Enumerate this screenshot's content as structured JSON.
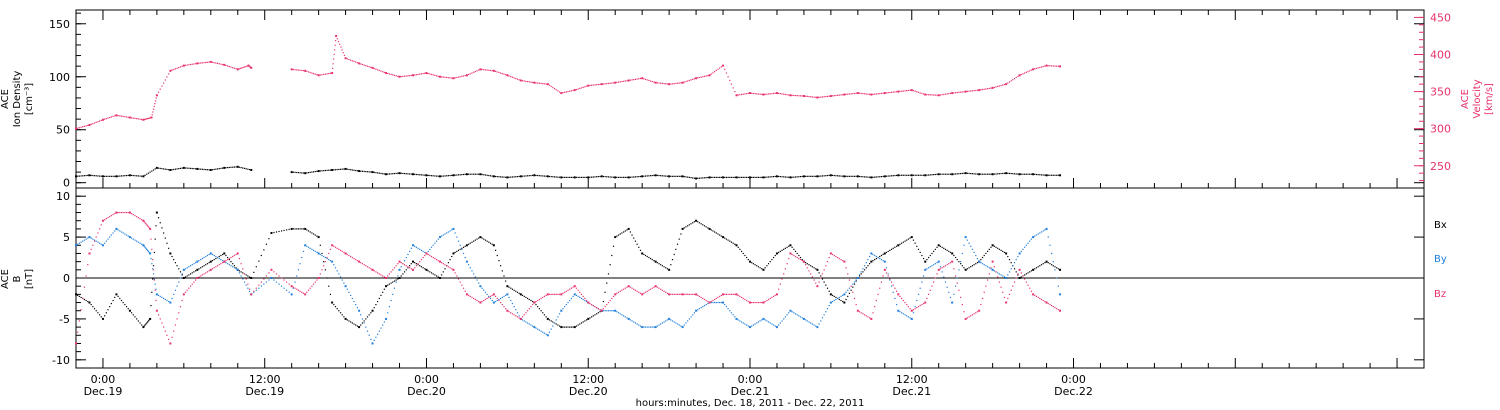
{
  "colors": {
    "density": "#000000",
    "velocity": "#e8336a",
    "bx": "#000000",
    "by": "#1f7fdb",
    "bz": "#e8336a",
    "axis": "#000000"
  },
  "chart_data": [
    {
      "type": "scatter",
      "panel": "plasma",
      "xlabel": "hours:minutes, Dec. 18, 2011 - Dec. 22, 2011",
      "x_range_hours": [
        -2,
        98
      ],
      "x_ticks": [
        {
          "hour": 0,
          "time": "0:00",
          "day": "Dec.19"
        },
        {
          "hour": 12,
          "time": "12:00",
          "day": "Dec.19"
        },
        {
          "hour": 24,
          "time": "0:00",
          "day": "Dec.20"
        },
        {
          "hour": 36,
          "time": "12:00",
          "day": "Dec.20"
        },
        {
          "hour": 48,
          "time": "0:00",
          "day": "Dec.21"
        },
        {
          "hour": 60,
          "time": "12:00",
          "day": "Dec.21"
        },
        {
          "hour": 72,
          "time": "0:00",
          "day": "Dec.22"
        }
      ],
      "left_axis": {
        "label_lines": [
          "ACE",
          "Ion Density",
          "[cm⁻³]"
        ],
        "ylim": [
          -5,
          163
        ],
        "ticks": [
          0,
          50,
          100,
          150
        ]
      },
      "right_axis": {
        "label_lines": [
          "ACE",
          "Velocity",
          "[km/s]"
        ],
        "ylim": [
          220,
          460
        ],
        "ticks": [
          250,
          300,
          350,
          400,
          450
        ]
      },
      "series": [
        {
          "key": "density",
          "axis": "left",
          "x": [
            -2,
            -1,
            0,
            1,
            2,
            3,
            4,
            5,
            6,
            7,
            8,
            9,
            10,
            11,
            14,
            15,
            16,
            17,
            18,
            19,
            20,
            21,
            22,
            23,
            24,
            25,
            26,
            27,
            28,
            29,
            30,
            31,
            32,
            33,
            34,
            35,
            36,
            37,
            38,
            39,
            40,
            41,
            42,
            43,
            44,
            45,
            46,
            47,
            48,
            49,
            50,
            51,
            52,
            53,
            54,
            55,
            56,
            57,
            58,
            59,
            60,
            61,
            62,
            63,
            64,
            65,
            66,
            67,
            68,
            69,
            70,
            71
          ],
          "y": [
            6,
            7,
            6,
            6,
            7,
            6,
            14,
            12,
            14,
            13,
            12,
            14,
            15,
            12,
            10,
            9,
            11,
            12,
            13,
            11,
            10,
            8,
            9,
            8,
            7,
            6,
            7,
            8,
            8,
            6,
            5,
            6,
            7,
            6,
            5,
            5,
            5,
            6,
            5,
            5,
            6,
            7,
            6,
            6,
            4,
            5,
            5,
            5,
            5,
            5,
            6,
            5,
            6,
            6,
            7,
            6,
            6,
            5,
            6,
            7,
            7,
            7,
            8,
            8,
            9,
            8,
            8,
            9,
            8,
            8,
            7,
            7
          ]
        },
        {
          "key": "velocity",
          "axis": "right",
          "x": [
            -2,
            -1,
            0,
            1,
            2,
            3,
            3.6,
            4,
            5,
            6,
            7,
            8,
            9,
            10,
            10.8,
            11,
            14,
            15,
            16,
            17,
            17.3,
            18,
            19,
            20,
            21,
            22,
            23,
            24,
            25,
            26,
            27,
            28,
            29,
            30,
            31,
            32,
            33,
            34,
            35,
            36,
            37,
            38,
            39,
            40,
            41,
            42,
            43,
            44,
            45,
            46,
            47,
            48,
            49,
            50,
            51,
            52,
            53,
            54,
            55,
            56,
            57,
            58,
            59,
            60,
            61,
            62,
            63,
            64,
            65,
            66,
            67,
            68,
            69,
            70,
            71
          ],
          "y": [
            300,
            305,
            312,
            318,
            315,
            312,
            315,
            345,
            378,
            385,
            388,
            390,
            386,
            380,
            385,
            382,
            380,
            378,
            372,
            375,
            425,
            395,
            388,
            382,
            375,
            370,
            372,
            375,
            370,
            368,
            372,
            380,
            378,
            372,
            365,
            362,
            360,
            348,
            352,
            358,
            360,
            362,
            365,
            368,
            362,
            360,
            362,
            368,
            372,
            385,
            345,
            348,
            346,
            348,
            345,
            344,
            342,
            344,
            346,
            348,
            346,
            348,
            350,
            352,
            346,
            345,
            348,
            350,
            352,
            355,
            360,
            372,
            380,
            385,
            384
          ]
        }
      ]
    },
    {
      "type": "scatter",
      "panel": "magnetic",
      "xlabel": "hours:minutes, Dec. 18, 2011 - Dec. 22, 2011",
      "x_range_hours": [
        -2,
        98
      ],
      "left_axis": {
        "label_lines": [
          "ACE",
          "B",
          "[nT]"
        ],
        "ylim": [
          -11,
          11
        ],
        "ticks": [
          -10,
          -5,
          0,
          5,
          10
        ]
      },
      "legend": {
        "placement": "right",
        "entries": [
          {
            "key": "bx",
            "label": "Bx"
          },
          {
            "key": "by",
            "label": "By"
          },
          {
            "key": "bz",
            "label": "Bz"
          }
        ]
      },
      "series": [
        {
          "key": "bx",
          "x": [
            -2,
            -1,
            0,
            1,
            2,
            3,
            3.5,
            4,
            5,
            6,
            7,
            8,
            9,
            10,
            11,
            12.5,
            14,
            15,
            16,
            17,
            18,
            19,
            20,
            21,
            22,
            23,
            24,
            25,
            26,
            27,
            28,
            29,
            30,
            31,
            32,
            33,
            34,
            35,
            36,
            37,
            38,
            39,
            40,
            41,
            42,
            43,
            44,
            45,
            46,
            47,
            48,
            49,
            50,
            51,
            52,
            53,
            54,
            55,
            56,
            57,
            58,
            59,
            60,
            61,
            62,
            63,
            64,
            65,
            66,
            67,
            68,
            69,
            70,
            71
          ],
          "y": [
            -2,
            -3,
            -5,
            -2,
            -4,
            -6,
            -5,
            8,
            3,
            0,
            1,
            2,
            3,
            1,
            0,
            5.5,
            6,
            6,
            5,
            -3,
            -5,
            -6,
            -4,
            -1,
            0,
            2,
            1,
            0,
            3,
            4,
            5,
            4,
            -1,
            -2,
            -3,
            -5,
            -6,
            -6,
            -5,
            -4,
            5,
            6,
            3,
            2,
            1,
            6,
            7,
            6,
            5,
            4,
            2,
            1,
            3,
            4,
            2,
            1,
            -2,
            -3,
            0,
            2,
            3,
            4,
            5,
            2,
            4,
            3,
            1,
            2,
            4,
            3,
            0,
            1,
            2,
            1
          ]
        },
        {
          "key": "by",
          "x": [
            -2,
            -1,
            0,
            1,
            2,
            3,
            3.5,
            4,
            5,
            6,
            7,
            8,
            9,
            10,
            11,
            12.5,
            14,
            15,
            16,
            17,
            18,
            19,
            20,
            21,
            22,
            23,
            24,
            25,
            26,
            27,
            28,
            29,
            30,
            31,
            32,
            33,
            34,
            35,
            36,
            37,
            38,
            39,
            40,
            41,
            42,
            43,
            44,
            45,
            46,
            47,
            48,
            49,
            50,
            51,
            52,
            53,
            54,
            55,
            56,
            57,
            58,
            59,
            60,
            61,
            62,
            63,
            64,
            65,
            66,
            67,
            68,
            69,
            70,
            71
          ],
          "y": [
            4,
            5,
            4,
            6,
            5,
            4,
            3,
            -2,
            -3,
            1,
            2,
            3,
            2,
            1,
            -2,
            0,
            -2,
            4,
            3,
            2,
            -1,
            -4,
            -8,
            -5,
            1,
            4,
            3,
            5,
            6,
            2,
            -1,
            -3,
            -2,
            -5,
            -6,
            -7,
            -4,
            -2,
            -3,
            -4,
            -4,
            -5,
            -6,
            -6,
            -5,
            -6,
            -4,
            -3,
            -3,
            -5,
            -6,
            -5,
            -6,
            -4,
            -5,
            -6,
            -3,
            -2,
            0,
            3,
            2,
            -4,
            -5,
            1,
            2,
            -3,
            5,
            2,
            1,
            0,
            3,
            5,
            6,
            -2
          ]
        },
        {
          "key": "bz",
          "x": [
            -2,
            -1,
            0,
            1,
            2,
            3,
            3.5,
            4,
            5,
            6,
            7,
            8,
            9,
            10,
            11,
            12.5,
            14,
            15,
            16,
            17,
            18,
            19,
            20,
            21,
            22,
            23,
            24,
            25,
            26,
            27,
            28,
            29,
            30,
            31,
            32,
            33,
            34,
            35,
            36,
            37,
            38,
            39,
            40,
            41,
            42,
            43,
            44,
            45,
            46,
            47,
            48,
            49,
            50,
            51,
            52,
            53,
            54,
            55,
            56,
            57,
            58,
            59,
            60,
            61,
            62,
            63,
            64,
            65,
            66,
            67,
            68,
            69,
            70,
            71
          ],
          "y": [
            -8,
            3,
            7,
            8,
            8,
            7,
            6,
            -4,
            -8,
            -2,
            0,
            1,
            2,
            3,
            -2,
            1,
            -1,
            -2,
            0,
            4,
            3,
            2,
            1,
            0,
            2,
            1,
            3,
            2,
            1,
            -2,
            -3,
            -2,
            -4,
            -5,
            -3,
            -2,
            -2,
            -1,
            -3,
            -4,
            -2,
            -1,
            -2,
            -1,
            -2,
            -2,
            -2,
            -3,
            -2,
            -2,
            -3,
            -3,
            -2,
            3,
            2,
            -1,
            3,
            2,
            -4,
            -5,
            1,
            -2,
            -4,
            -3,
            1,
            2,
            -5,
            -4,
            2,
            -3,
            1,
            -2,
            -3,
            -4
          ]
        }
      ]
    }
  ]
}
